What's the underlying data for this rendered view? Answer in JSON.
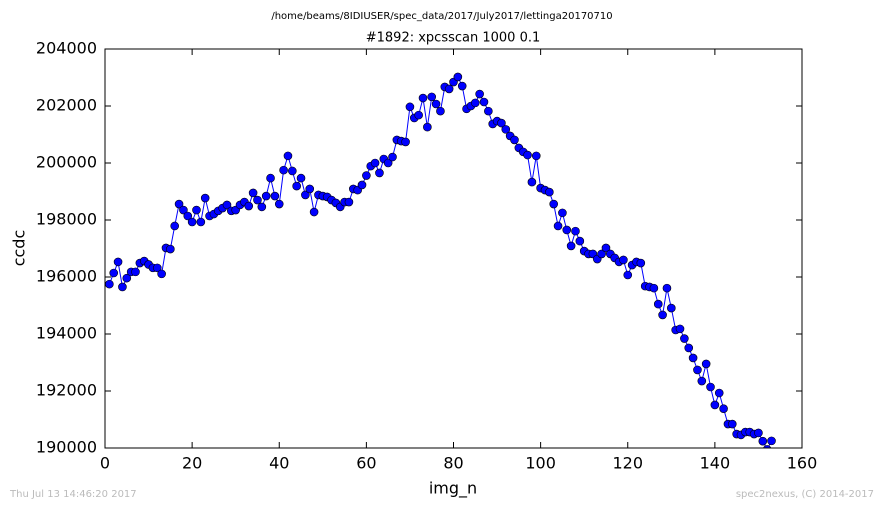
{
  "chart_data": {
    "type": "line",
    "suptitle": "/home/beams/8IDIUSER/spec_data/2017/July2017/lettinga20170710",
    "title": "#1892: xpcsscan 1000 0.1",
    "x_label": "img_n",
    "y_label": "ccdc",
    "footer_left": "Thu Jul 13 14:46:20 2017",
    "footer_right": "spec2nexus, (C) 2014-2017",
    "x": [
      1,
      2,
      3,
      4,
      5,
      6,
      7,
      8,
      9,
      10,
      11,
      12,
      13,
      14,
      15,
      16,
      17,
      18,
      19,
      20,
      21,
      22,
      23,
      24,
      25,
      26,
      27,
      28,
      29,
      30,
      31,
      32,
      33,
      34,
      35,
      36,
      37,
      38,
      39,
      40,
      41,
      42,
      43,
      44,
      45,
      46,
      47,
      48,
      49,
      50,
      51,
      52,
      53,
      54,
      55,
      56,
      57,
      58,
      59,
      60,
      61,
      62,
      63,
      64,
      65,
      66,
      67,
      68,
      69,
      70,
      71,
      72,
      73,
      74,
      75,
      76,
      77,
      78,
      79,
      80,
      81,
      82,
      83,
      84,
      85,
      86,
      87,
      88,
      89,
      90,
      91,
      92,
      93,
      94,
      95,
      96,
      97,
      98,
      99,
      100,
      101,
      102,
      103,
      104,
      105,
      106,
      107,
      108,
      109,
      110,
      111,
      112,
      113,
      114,
      115,
      116,
      117,
      118,
      119,
      120,
      121,
      122,
      123,
      124,
      125,
      126,
      127,
      128,
      129,
      130,
      131,
      132,
      133,
      134,
      135,
      136,
      137,
      138,
      139,
      140,
      141,
      142,
      143,
      144,
      145,
      146,
      147,
      148,
      149,
      150,
      151,
      152,
      153
    ],
    "series": [
      {
        "color": "#0000ff",
        "values": [
          195750,
          196140,
          196530,
          195650,
          195960,
          196180,
          196180,
          196490,
          196560,
          196440,
          196320,
          196320,
          196110,
          197020,
          196980,
          197790,
          198560,
          198350,
          198140,
          197930,
          198350,
          197930,
          198770,
          198140,
          198210,
          198320,
          198420,
          198530,
          198320,
          198350,
          198530,
          198630,
          198490,
          198950,
          198700,
          198460,
          198840,
          199470,
          198840,
          198560,
          199750,
          200250,
          199720,
          199190,
          199470,
          198880,
          199090,
          198280,
          198880,
          198840,
          198810,
          198700,
          198600,
          198460,
          198630,
          198630,
          199090,
          199050,
          199230,
          199560,
          199890,
          200000,
          199650,
          200140,
          200000,
          200210,
          200810,
          200770,
          200740,
          201970,
          201580,
          201680,
          202280,
          201260,
          202320,
          202070,
          201820,
          202670,
          202600,
          202840,
          203020,
          202700,
          201900,
          202000,
          202110,
          202420,
          202140,
          201820,
          201370,
          201470,
          201400,
          201180,
          200950,
          200810,
          200530,
          200390,
          200280,
          199330,
          200250,
          199120,
          199050,
          198980,
          198560,
          197790,
          198250,
          197650,
          197090,
          197610,
          197260,
          196910,
          196810,
          196810,
          196630,
          196810,
          197020,
          196810,
          196670,
          196530,
          196600,
          196070,
          196420,
          196530,
          196490,
          195680,
          195650,
          195610,
          195050,
          194670,
          195610,
          194910,
          194140,
          194180,
          193840,
          193510,
          193160,
          192740,
          192350,
          192950,
          192140,
          191510,
          191930,
          191380,
          190840,
          190840,
          190490,
          190460,
          190560,
          190560,
          190490,
          190530,
          190240,
          189950,
          190250
        ]
      }
    ],
    "xlim": [
      0,
      160
    ],
    "xticks": [
      0,
      20,
      40,
      60,
      80,
      100,
      120,
      140,
      160
    ],
    "ylim": [
      190000,
      204000
    ],
    "yticks": [
      190000,
      192000,
      194000,
      196000,
      198000,
      200000,
      202000,
      204000
    ],
    "grid": false
  }
}
